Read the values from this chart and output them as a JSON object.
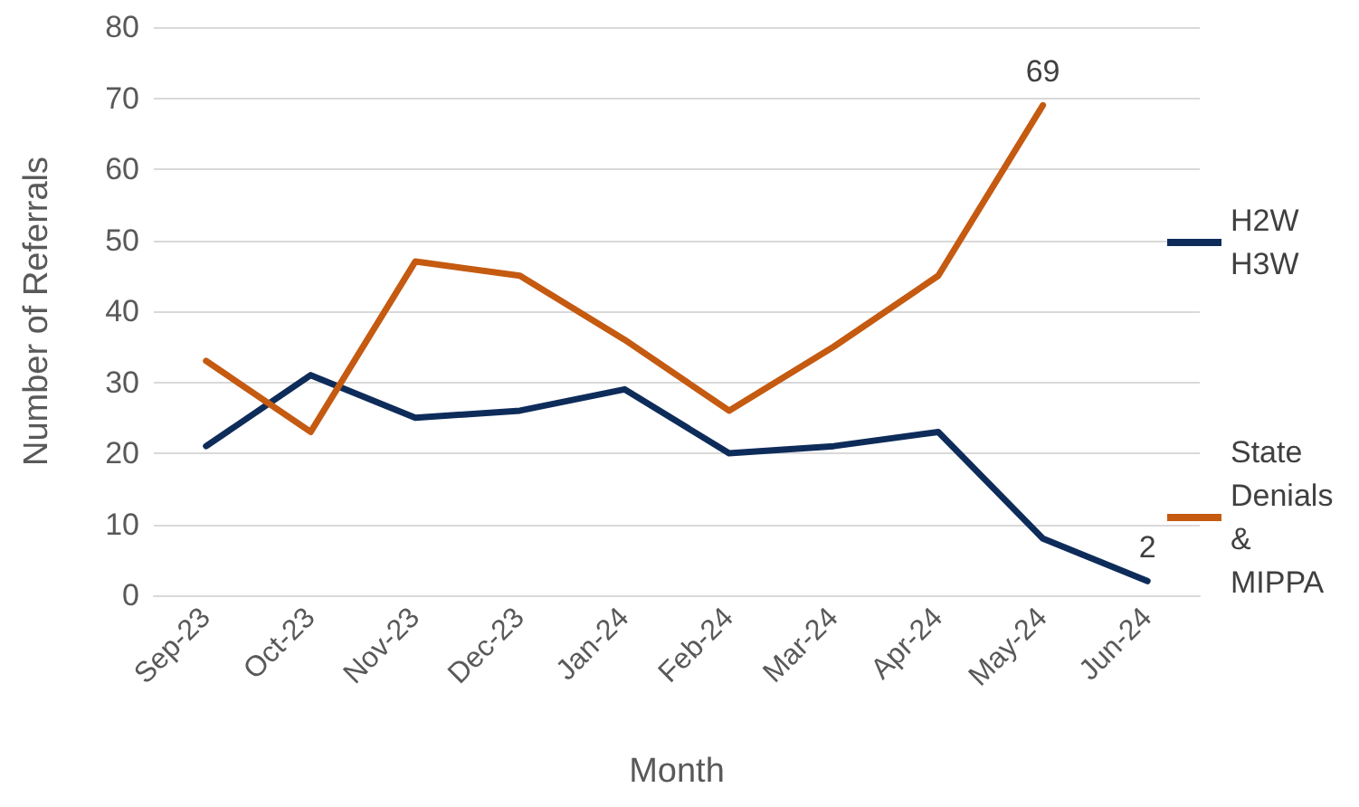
{
  "chart_data": {
    "type": "line",
    "xlabel": "Month",
    "ylabel": "Number of Referrals",
    "categories": [
      "Sep-23",
      "Oct-23",
      "Nov-23",
      "Dec-23",
      "Jan-24",
      "Feb-24",
      "Mar-24",
      "Apr-24",
      "May-24",
      "Jun-24"
    ],
    "series": [
      {
        "name": "H2W H3W",
        "color": "#0e2c5a",
        "values": [
          21,
          31,
          25,
          26,
          29,
          20,
          21,
          23,
          8,
          2
        ],
        "value_labels": [
          null,
          null,
          null,
          null,
          null,
          null,
          null,
          null,
          null,
          "2"
        ]
      },
      {
        "name": "State Denials & MIPPA",
        "color": "#c55a11",
        "values": [
          33,
          23,
          47,
          45,
          36,
          26,
          35,
          45,
          69,
          null
        ],
        "value_labels": [
          null,
          null,
          null,
          null,
          null,
          null,
          null,
          null,
          "69",
          null
        ]
      }
    ],
    "ylim": [
      0,
      80
    ],
    "yticks": [
      0,
      10,
      20,
      30,
      40,
      50,
      60,
      70,
      80
    ],
    "grid": "y",
    "legend": "right",
    "marker": "none",
    "line_style": "solid"
  }
}
